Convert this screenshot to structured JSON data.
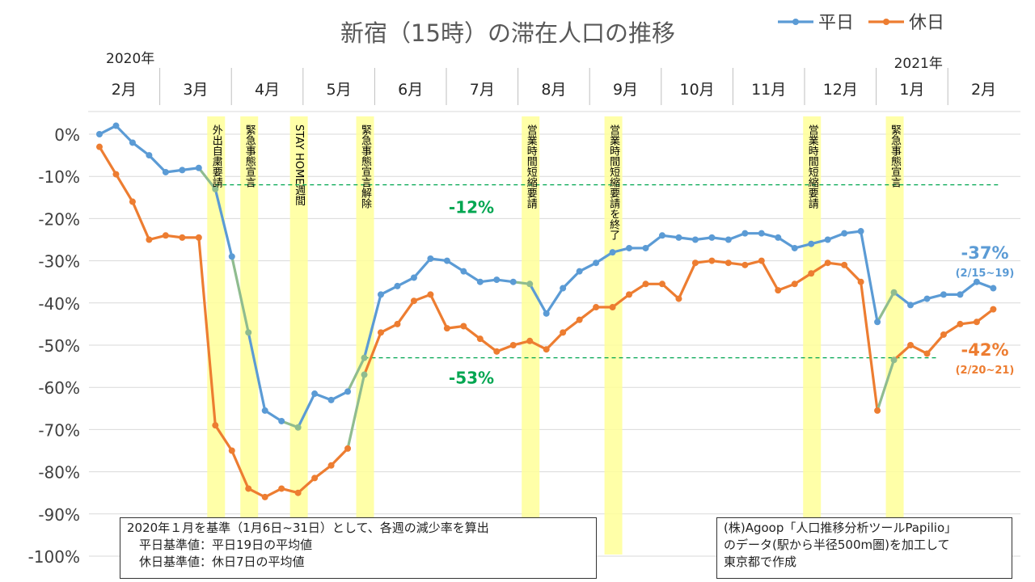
{
  "chart_data": {
    "type": "line",
    "title": "新宿（15時）の滞在人口の推移",
    "legend": {
      "placement": "top-right"
    },
    "year_labels": [
      {
        "text": "2020年",
        "month_index": 0
      },
      {
        "text": "2021年",
        "month_index": 11
      }
    ],
    "months": [
      "2月",
      "3月",
      "4月",
      "5月",
      "6月",
      "7月",
      "8月",
      "9月",
      "10月",
      "11月",
      "12月",
      "1月",
      "2月"
    ],
    "ylim": [
      -100,
      5
    ],
    "yticks": [
      {
        "value": 0,
        "label": "0%"
      },
      {
        "value": -10,
        "label": "-10%"
      },
      {
        "value": -20,
        "label": "-20%"
      },
      {
        "value": -30,
        "label": "-30%"
      },
      {
        "value": -40,
        "label": "-40%"
      },
      {
        "value": -50,
        "label": "-50%"
      },
      {
        "value": -60,
        "label": "-60%"
      },
      {
        "value": -70,
        "label": "-70%"
      },
      {
        "value": -80,
        "label": "-80%"
      },
      {
        "value": -90,
        "label": "-90%"
      },
      {
        "value": -100,
        "label": "-100%"
      }
    ],
    "grid": true,
    "series": [
      {
        "name": "平日",
        "color": "#5b9bd5",
        "values": [
          0,
          2,
          -2,
          -5,
          -9,
          -8.5,
          -8,
          -13,
          -29,
          -47,
          -65.5,
          -68,
          -69.5,
          -61.5,
          -63,
          -61,
          -53,
          -38,
          -36,
          -34,
          -29.5,
          -30,
          -32.5,
          -35,
          -34.5,
          -35,
          -35.5,
          -42.5,
          -36.5,
          -32.5,
          -30.5,
          -28,
          -27,
          -27,
          -24,
          -24.5,
          -25,
          -24.5,
          -25,
          -23.5,
          -23.5,
          -24.5,
          -27,
          -26,
          -25,
          -23.5,
          -23,
          -44.5,
          -37.5,
          -40.5,
          -39,
          -38,
          -38,
          -35,
          -36.5
        ]
      },
      {
        "name": "休日",
        "color": "#ed7d31",
        "values": [
          -3,
          -9.5,
          -16,
          -25,
          -24,
          -24.5,
          -24.5,
          -69,
          -75,
          -84,
          -86,
          -84,
          -85,
          -81.5,
          -78.5,
          -74.5,
          -57,
          -47,
          -45,
          -39.5,
          -38,
          -46,
          -45.5,
          -48.5,
          -51.5,
          -50,
          -49,
          -51,
          -47,
          -44,
          -41,
          -41,
          -38,
          -35.5,
          -35.5,
          -39,
          -30.5,
          -30,
          -30.5,
          -31,
          -30,
          -37,
          -35.5,
          -33,
          -30.5,
          -31,
          -35,
          -65.5,
          -53.5,
          -50,
          -52,
          -47.5,
          -45,
          -44.5,
          -41.5
        ]
      }
    ],
    "highlight_segments": {
      "color": "#8fbc8f",
      "weekday_indices": [
        7,
        9,
        12,
        16,
        26,
        48
      ],
      "holiday_indices": [
        16,
        48
      ]
    },
    "events": [
      {
        "label": "外出自粛要請",
        "week_index": 7
      },
      {
        "label": "緊急事態宣言",
        "week_index": 9
      },
      {
        "label": "STAY HOME週間",
        "week_index": 12
      },
      {
        "label": "緊急事態宣言解除",
        "week_index": 16
      },
      {
        "label": "営業時間短縮要請",
        "week_index": 26
      },
      {
        "label": "営業時間短縮要請を終了",
        "week_index": 31
      },
      {
        "label": "営業時間短縮要請",
        "week_index": 43
      },
      {
        "label": "緊急事態宣言",
        "week_index": 48
      }
    ],
    "reference_lines": [
      {
        "value": -12,
        "label": "-12%",
        "color": "#00a651"
      },
      {
        "value": -53,
        "label": "-53%",
        "color": "#00a651"
      }
    ],
    "end_labels": [
      {
        "series": "平日",
        "value_label": "-37%",
        "period": "(2/15~19)"
      },
      {
        "series": "休日",
        "value_label": "-42%",
        "period": "(2/20~21)"
      }
    ]
  },
  "notes": {
    "left": "2020年１月を基準（1月6日~31日）として、各週の減少率を算出\n　平日基準値：平日19日の平均値\n　休日基準値：休日7日の平均値",
    "right": "(株)Agoop「人口推移分析ツールPapilio」\nのデータ(駅から半径500m圏)を加工して\n東京都で作成"
  }
}
